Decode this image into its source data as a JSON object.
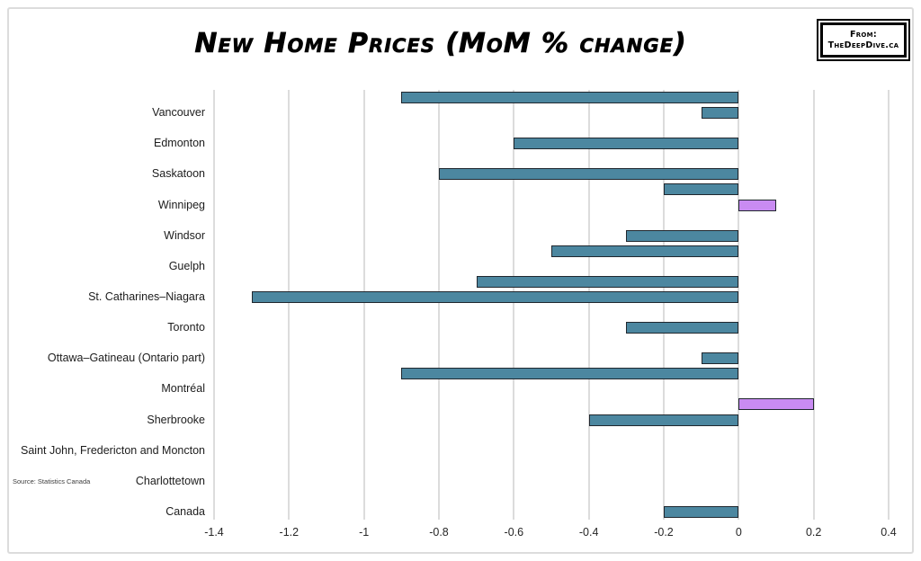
{
  "header": {
    "title": "New Home Prices (MoM % change)",
    "badge_line1": "From:",
    "badge_line2": "TheDeepDive.ca"
  },
  "source_note": "Source: Statistics Canada",
  "colors": {
    "negative_bar": "#4C87A0",
    "positive_bar": "#C98BF2",
    "bar_border": "#20272E",
    "gridline": "#DCDCDC",
    "text": "#262626"
  },
  "chart_data": {
    "type": "bar",
    "orientation": "horizontal",
    "title": "New Home Prices (MoM % change)",
    "xlabel": "",
    "ylabel": "",
    "xlim": [
      -1.4,
      0.4
    ],
    "ticks": [
      -1.4,
      -1.2,
      -1.0,
      -0.8,
      -0.6,
      -0.4,
      -0.2,
      0,
      0.2,
      0.4
    ],
    "tick_labels": [
      "-1.4",
      "-1.2",
      "-1",
      "-0.8",
      "-0.6",
      "-0.4",
      "-0.2",
      "0",
      "0.2",
      "0.4"
    ],
    "grid": true,
    "legend": false,
    "rows_per_category": 2,
    "categories": [
      "Vancouver",
      "Edmonton",
      "Saskatoon",
      "Winnipeg",
      "Windsor",
      "Guelph",
      "St. Catharines–Niagara",
      "Toronto",
      "Ottawa–Gatineau (Ontario part)",
      "Montréal",
      "Sherbrooke",
      "Saint John, Fredericton and Moncton",
      "Charlottetown",
      "Canada"
    ],
    "series": [
      {
        "name": "upper_bar",
        "values": [
          -0.9,
          null,
          null,
          -0.2,
          null,
          -0.5,
          -0.7,
          null,
          null,
          -0.9,
          0.2,
          null,
          null,
          null
        ]
      },
      {
        "name": "lower_bar",
        "values": [
          -0.1,
          -0.6,
          -0.8,
          0.1,
          -0.3,
          null,
          -1.3,
          -0.3,
          -0.1,
          null,
          -0.4,
          null,
          null,
          -0.2
        ]
      }
    ]
  }
}
